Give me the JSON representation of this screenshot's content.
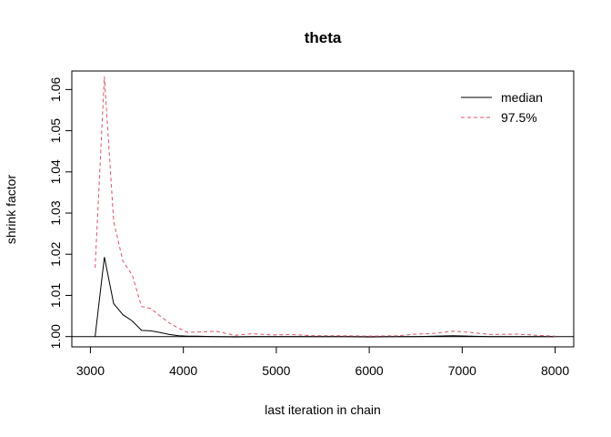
{
  "chart_data": {
    "type": "line",
    "title": "theta",
    "xlabel": "last iteration in chain",
    "ylabel": "shrink factor",
    "xlim": [
      2800,
      8200
    ],
    "ylim": [
      0.9975,
      1.0645
    ],
    "x_ticks": [
      3000,
      4000,
      5000,
      6000,
      7000,
      8000
    ],
    "x_tick_labels": [
      "3000",
      "4000",
      "5000",
      "6000",
      "7000",
      "8000"
    ],
    "y_ticks": [
      1.0,
      1.01,
      1.02,
      1.03,
      1.04,
      1.05,
      1.06
    ],
    "y_tick_labels": [
      "1.00",
      "1.01",
      "1.02",
      "1.03",
      "1.04",
      "1.05",
      "1.06"
    ],
    "reference_line": 1.0,
    "legend_position": "top-right",
    "x": [
      3050,
      3150,
      3250,
      3350,
      3450,
      3550,
      3650,
      3750,
      3850,
      3950,
      4050,
      4150,
      4350,
      4550,
      4750,
      4950,
      5150,
      5400,
      5700,
      6000,
      6300,
      6500,
      6700,
      6900,
      7100,
      7300,
      7600,
      7800,
      8000
    ],
    "series": [
      {
        "name": "median",
        "color": "#000000",
        "dash": "solid",
        "values": [
          1.0,
          1.0193,
          1.008,
          1.0053,
          1.0038,
          1.0015,
          1.0014,
          1.001,
          1.0005,
          1.0002,
          1.0001,
          1.0001,
          1.0,
          0.9999,
          1.0,
          1.0,
          1.0,
          1.0,
          1.0,
          0.9999,
          1.0,
          1.0,
          1.0001,
          1.0002,
          1.0001,
          1.0,
          1.0,
          1.0,
          1.0
        ]
      },
      {
        "name": "97.5%",
        "color": "#DF536B",
        "dash": "dashed",
        "values": [
          1.0167,
          1.0632,
          1.028,
          1.0183,
          1.015,
          1.0073,
          1.0068,
          1.005,
          1.0033,
          1.002,
          1.001,
          1.0011,
          1.0013,
          1.0003,
          1.0007,
          1.0004,
          1.0005,
          1.0002,
          1.0002,
          1.0001,
          1.0002,
          1.0006,
          1.0008,
          1.0013,
          1.001,
          1.0005,
          1.0006,
          1.0003,
          1.0001
        ]
      }
    ]
  }
}
